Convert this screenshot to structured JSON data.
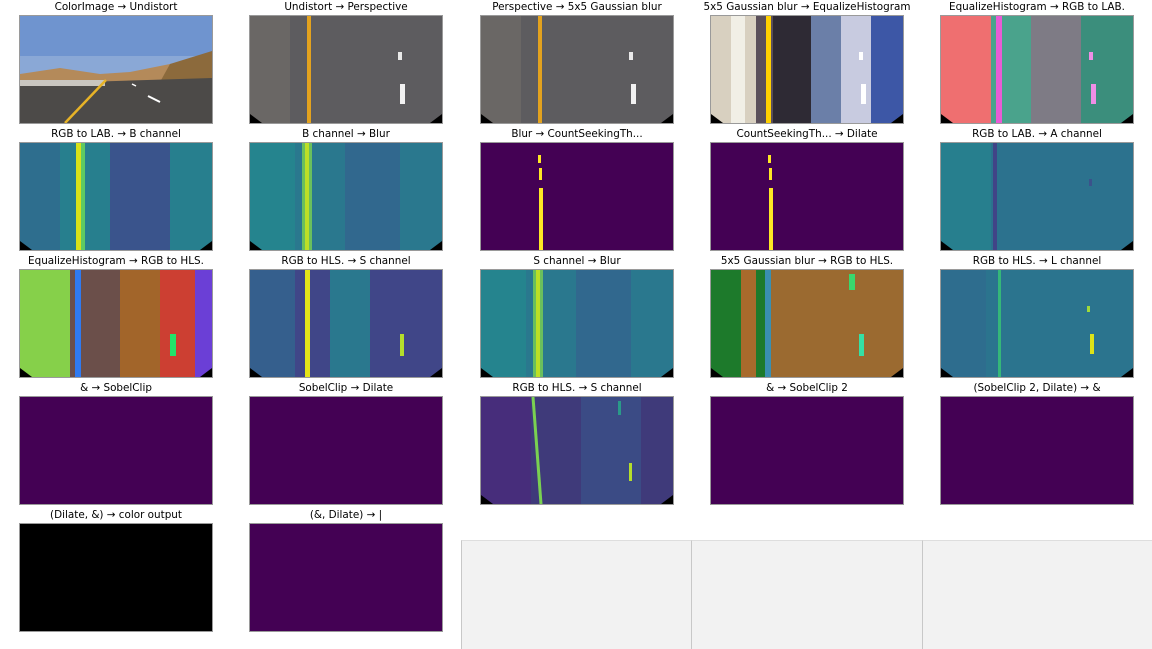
{
  "panels": [
    {
      "title": "ColorImage → Undistort",
      "kind": "rgb-road"
    },
    {
      "title": "Undistort → Perspective",
      "kind": "rgb-warp"
    },
    {
      "title": "Perspective → 5x5 Gaussian blur",
      "kind": "rgb-warp"
    },
    {
      "title": "5x5 Gaussian blur → EqualizeHistogram",
      "kind": "equalize"
    },
    {
      "title": "EqualizeHistogram → RGB to LAB.",
      "kind": "lab"
    },
    {
      "title": "RGB to LAB. → B channel",
      "kind": "viridis-b"
    },
    {
      "title": "B channel → Blur",
      "kind": "viridis-blur"
    },
    {
      "title": "Blur → CountSeekingTh...",
      "kind": "binary-left"
    },
    {
      "title": "CountSeekingTh... → Dilate",
      "kind": "binary-left"
    },
    {
      "title": "RGB to LAB. → A channel",
      "kind": "viridis-a"
    },
    {
      "title": "EqualizeHistogram → RGB to HLS.",
      "kind": "hls-color"
    },
    {
      "title": "RGB to HLS. → S channel",
      "kind": "viridis-s"
    },
    {
      "title": "S channel → Blur",
      "kind": "viridis-blur"
    },
    {
      "title": "5x5 Gaussian blur → RGB to HLS.",
      "kind": "hls-orange"
    },
    {
      "title": "RGB to HLS. → L channel",
      "kind": "viridis-l"
    },
    {
      "title": "& → SobelClip",
      "kind": "empty-purple"
    },
    {
      "title": "SobelClip → Dilate",
      "kind": "empty-purple"
    },
    {
      "title": "RGB to HLS. → S channel",
      "kind": "viridis-s2"
    },
    {
      "title": "& → SobelClip 2",
      "kind": "empty-purple"
    },
    {
      "title": "(SobelClip 2, Dilate) → &",
      "kind": "empty-purple"
    },
    {
      "title": "(Dilate, &) → color output",
      "kind": "black"
    },
    {
      "title": "(&, Dilate) → |",
      "kind": "empty-purple"
    }
  ],
  "colors": {
    "viridis_dark": "#440154",
    "viridis_teal": "#26828e",
    "viridis_green": "#35b779",
    "viridis_yellow": "#fde725",
    "empty_panel": "#f2f2f2"
  }
}
